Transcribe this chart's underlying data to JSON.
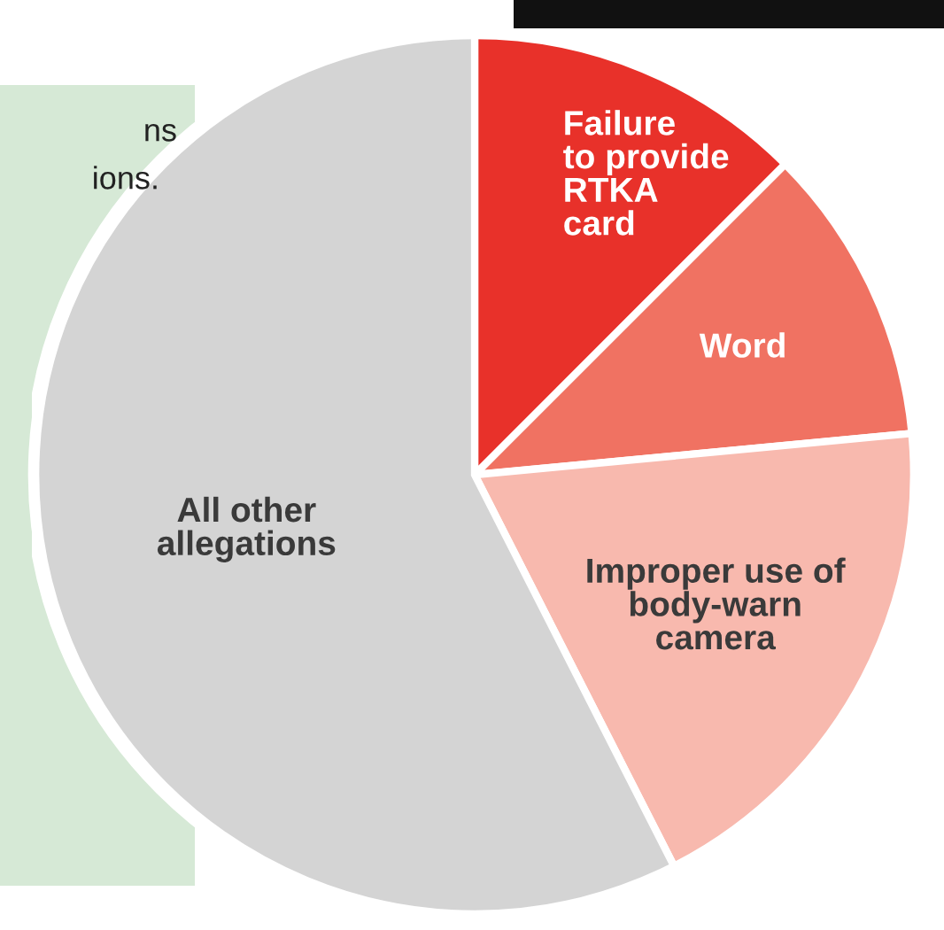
{
  "chart_data": {
    "type": "pie",
    "categories": [
      "Failure\nto provide\nRTKA\ncard",
      "Word",
      "Improper use of\nbody-warn\ncamera",
      "All other\nallegations"
    ],
    "values": [
      12.5,
      11,
      19,
      57.5
    ],
    "colors": [
      "#e8312a",
      "#f07262",
      "#f8b9ae",
      "#d4d4d4"
    ],
    "annotations": [
      "ns",
      "ions."
    ]
  }
}
